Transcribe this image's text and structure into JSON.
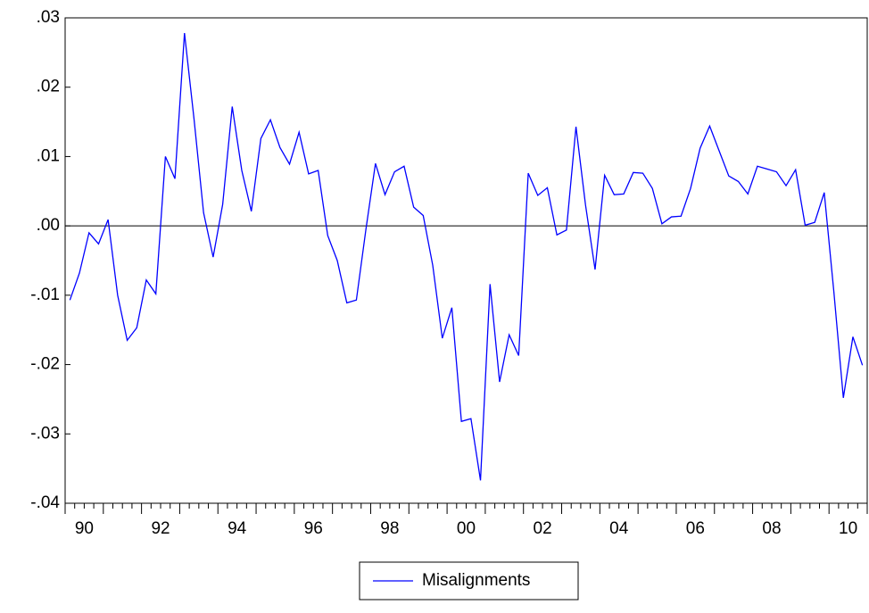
{
  "chart_data": {
    "type": "line",
    "categories": [
      "90",
      null,
      null,
      null,
      null,
      null,
      null,
      null,
      "92",
      null,
      null,
      null,
      null,
      null,
      null,
      null,
      "94",
      null,
      null,
      null,
      null,
      null,
      null,
      null,
      "96",
      null,
      null,
      null,
      null,
      null,
      null,
      null,
      "98",
      null,
      null,
      null,
      null,
      null,
      null,
      null,
      "00",
      null,
      null,
      null,
      null,
      null,
      null,
      null,
      "02",
      null,
      null,
      null,
      null,
      null,
      null,
      null,
      "04",
      null,
      null,
      null,
      null,
      null,
      null,
      null,
      "06",
      null,
      null,
      null,
      null,
      null,
      null,
      null,
      "08",
      null,
      null,
      null,
      null,
      null,
      null,
      null,
      "10",
      null,
      null,
      null
    ],
    "series": [
      {
        "name": "Misalignments",
        "color": "#0000ff",
        "values": [
          -0.0107,
          -0.0068,
          -0.001,
          -0.0026,
          0.0009,
          -0.01,
          -0.0165,
          -0.0147,
          -0.0078,
          -0.0098,
          0.01,
          0.0068,
          0.0278,
          0.0154,
          0.0019,
          -0.0045,
          0.0031,
          0.0172,
          0.008,
          0.0021,
          0.0126,
          0.0153,
          0.0113,
          0.0089,
          0.0135,
          0.0075,
          0.008,
          -0.0014,
          -0.005,
          -0.0111,
          -0.0107,
          -0.0005,
          0.009,
          0.0045,
          0.0078,
          0.0086,
          0.0027,
          0.0015,
          -0.0057,
          -0.0162,
          -0.0118,
          -0.0282,
          -0.0278,
          -0.0367,
          -0.0084,
          -0.0225,
          -0.0157,
          -0.0187,
          0.0076,
          0.0044,
          0.0055,
          -0.0013,
          -0.0006,
          0.0143,
          0.003,
          -0.0063,
          0.0073,
          0.0045,
          0.0046,
          0.0077,
          0.0076,
          0.0054,
          0.0003,
          0.0013,
          0.0014,
          0.0054,
          0.0112,
          0.0144,
          0.0108,
          0.0072,
          0.0064,
          0.0046,
          0.0086,
          0.0082,
          0.0078,
          0.0058,
          0.0081,
          0.0001,
          0.0005,
          0.0048,
          -0.0094,
          -0.0248,
          -0.016,
          -0.0201
        ]
      }
    ],
    "ylim": [
      -0.04,
      0.03
    ],
    "yticks": [
      {
        "value": -0.04,
        "label": "-.04"
      },
      {
        "value": -0.03,
        "label": "-.03"
      },
      {
        "value": -0.02,
        "label": "-.02"
      },
      {
        "value": -0.01,
        "label": "-.01"
      },
      {
        "value": 0,
        "label": ".00"
      },
      {
        "value": 0.01,
        "label": ".01"
      },
      {
        "value": 0.02,
        "label": ".02"
      },
      {
        "value": 0.03,
        "label": ".03"
      }
    ],
    "zero_line": true,
    "legend": "bottom"
  }
}
